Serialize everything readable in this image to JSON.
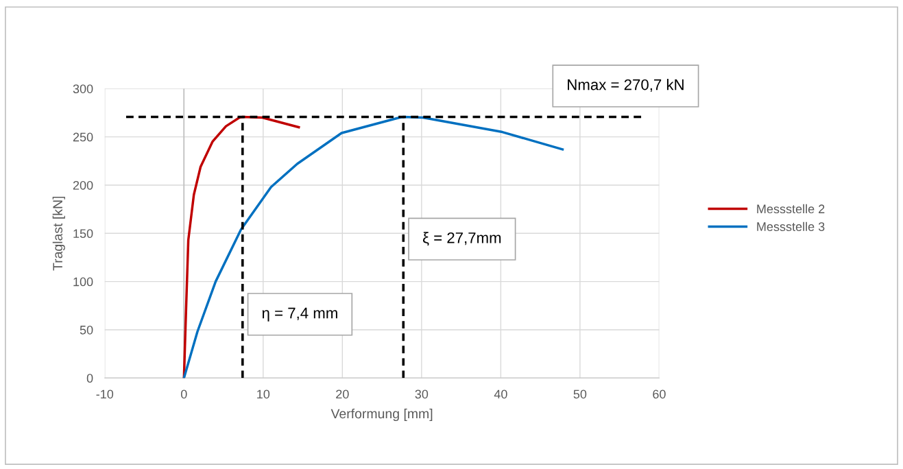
{
  "chart_data": {
    "type": "line",
    "xlabel": "Verformung [mm]",
    "ylabel": "Traglast [kN]",
    "xlim": [
      -10,
      60
    ],
    "xticks": [
      -10,
      0,
      10,
      20,
      30,
      40,
      50,
      60
    ],
    "ylim": [
      0,
      300
    ],
    "yticks": [
      0,
      50,
      100,
      150,
      200,
      250,
      300
    ],
    "grid": true,
    "legend": "right",
    "marker": "none",
    "line_style": "solid",
    "series": [
      {
        "name": "Messstelle 2",
        "color": "#c00000",
        "x": [
          0,
          0.27,
          0.55,
          1.25,
          2.1,
          3.6,
          5.3,
          7.0,
          7.4,
          9.9,
          14.5
        ],
        "values": [
          0,
          72,
          143,
          190,
          219,
          245,
          261,
          270,
          270.7,
          270,
          260
        ]
      },
      {
        "name": "Messstelle 3",
        "color": "#0070c0",
        "x": [
          0,
          1.7,
          4.0,
          7.2,
          11.0,
          14.3,
          19.9,
          27.2,
          27.7,
          30.2,
          40.2,
          47.8
        ],
        "values": [
          0,
          48,
          100,
          154,
          198,
          222,
          254,
          270,
          270.7,
          270,
          255,
          237
        ]
      },
      {
        "color": "#000000",
        "line_style": "dashed",
        "x": [
          -7.3,
          57.8
        ],
        "values": [
          270.7,
          270.7
        ]
      },
      {
        "color": "#000000",
        "line_style": "dashed",
        "x": [
          7.4,
          7.4
        ],
        "values": [
          0,
          270.7
        ]
      },
      {
        "color": "#000000",
        "line_style": "dashed",
        "x": [
          27.7,
          27.7
        ],
        "values": [
          0,
          270.7
        ]
      }
    ],
    "annotations": [
      {
        "text": "η = 7,4 mm",
        "x": 7.4,
        "y": 34
      },
      {
        "text": "ξ = 27,7mm",
        "x": 27.7,
        "y": 112
      },
      {
        "text": "Nmax = 270,7 kN",
        "x": 45.9,
        "y": 270.7
      }
    ]
  }
}
